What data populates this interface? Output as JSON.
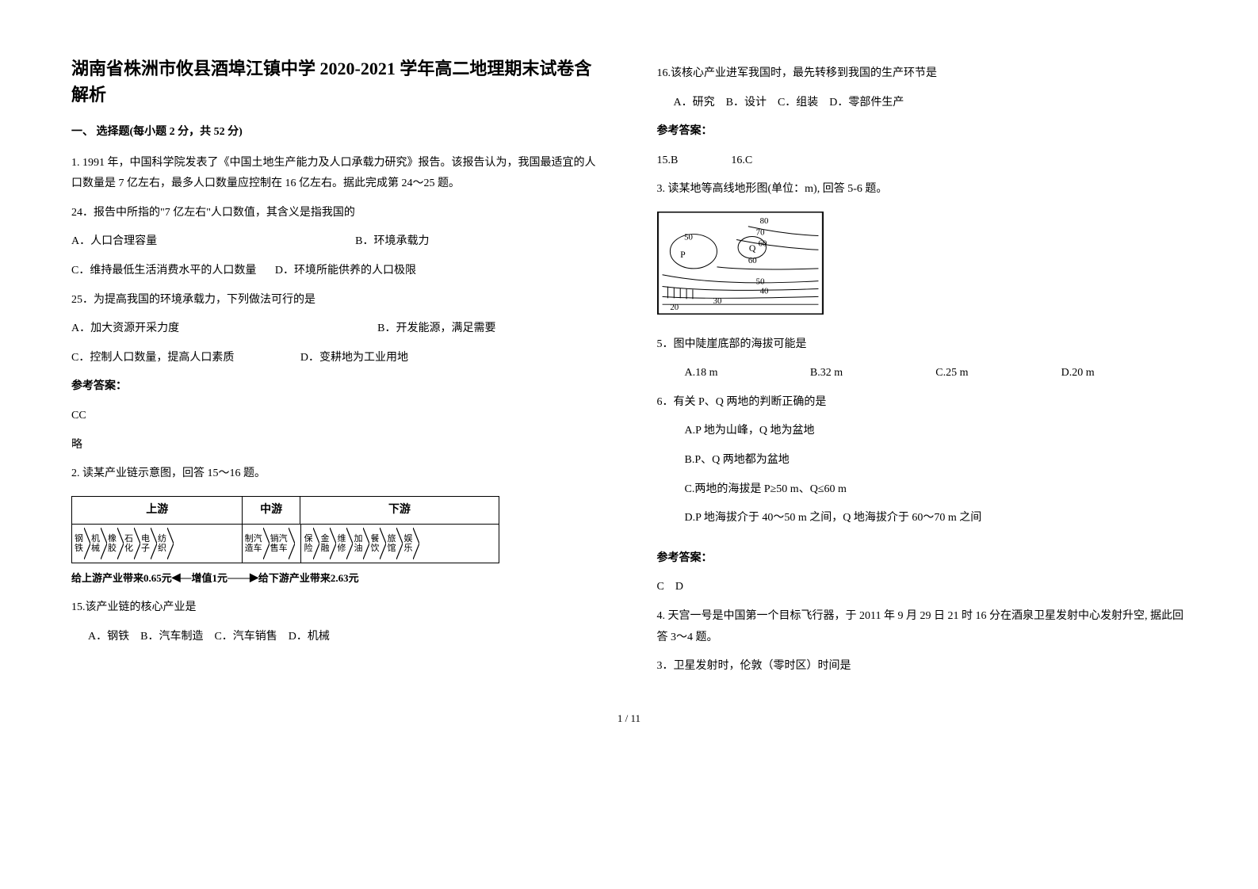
{
  "title": "湖南省株洲市攸县酒埠江镇中学 2020-2021 学年高二地理期末试卷含解析",
  "section1": "一、 选择题(每小题 2 分，共 52 分)",
  "q1": {
    "stem": "1. 1991 年，中国科学院发表了《中国土地生产能力及人口承载力研究》报告。该报告认为，我国最适宜的人口数量是 7 亿左右，最多人口数量应控制在 16 亿左右。据此完成第 24～25 题。",
    "q24": "24．报告中所指的\"7 亿左右\"人口数值，其含义是指我国的",
    "q24A": "A．人口合理容量",
    "q24B": "B．环境承载力",
    "q24C": "C．维持最低生活消费水平的人口数量",
    "q24D": "D．环境所能供养的人口极限",
    "q25": "25．为提高我国的环境承载力，下列做法可行的是",
    "q25A": "A．加大资源开采力度",
    "q25B": "B．开发能源，满足需要",
    "q25C": "C．控制人口数量，提高人口素质",
    "q25D": "D．变耕地为工业用地",
    "ansLabel": "参考答案：",
    "ans": "CC",
    "note": "略"
  },
  "q2": {
    "stem": "2. 读某产业链示意图，回答 15～16 题。",
    "chain": {
      "headers": [
        "上游",
        "中游",
        "下游"
      ],
      "upstream": [
        "钢\n铁",
        "机\n械",
        "橡\n胶",
        "石\n化",
        "电\n子",
        "纺\n织"
      ],
      "midstream": [
        "制汽\n造车",
        "销汽\n售车"
      ],
      "downstream": [
        "保\n险",
        "金\n融",
        "维\n修",
        "加\n油",
        "餐\n饮",
        "旅\n馆",
        "娱\n乐"
      ],
      "capLeft": "给上游产业带来0.65元",
      "capMid": "增值1元",
      "capRight": "给下游产业带来2.63元"
    },
    "q15": "15.该产业链的核心产业是",
    "q15opts": "  A．钢铁　B．汽车制造　C．汽车销售　D．机械",
    "q16": "16.该核心产业进军我国时，最先转移到我国的生产环节是",
    "q16opts": "  A．研究　B．设计　C．组装　D．零部件生产",
    "ansLabel": "参考答案：",
    "ans15": "15.B",
    "ans16": "16.C"
  },
  "q3": {
    "stem": "3. 读某地等高线地形图(单位：m), 回答 5-6 题。",
    "contour": {
      "labels": [
        "80",
        "70",
        "60",
        "50",
        "60",
        "50",
        "40",
        "30",
        "20"
      ],
      "P": "P",
      "Q": "Q"
    },
    "q5": "5．图中陡崖底部的海拔可能是",
    "q5A": "A.18 m",
    "q5B": "B.32 m",
    "q5C": "C.25 m",
    "q5D": "D.20 m",
    "q6": "6．有关 P、Q 两地的判断正确的是",
    "q6A": "A.P 地为山峰，Q 地为盆地",
    "q6B": "B.P、Q 两地都为盆地",
    "q6C": "C.两地的海拔是 P≥50 m、Q≤60 m",
    "q6D": "D.P 地海拔介于 40～50 m 之间，Q 地海拔介于 60～70 m 之间",
    "ansLabel": "参考答案：",
    "ans": "C　D"
  },
  "q4": {
    "stem": "4. 天宫一号是中国第一个目标飞行器，于 2011 年 9 月 29 日 21 时 16 分在酒泉卫星发射中心发射升空, 据此回答 3～4 题。",
    "q3": "3．卫星发射时，伦敦（零时区）时间是"
  },
  "pageNum": "1 / 11"
}
